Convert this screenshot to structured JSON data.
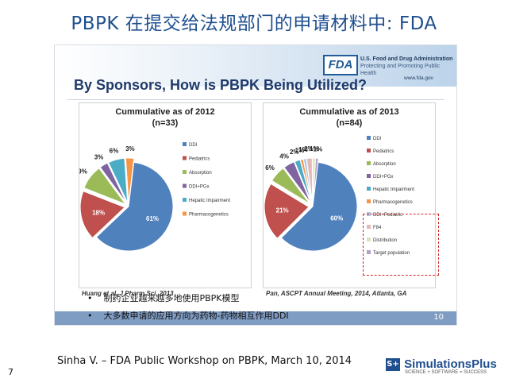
{
  "slide": {
    "title": "PBPK 在提交给法规部门的申请材料中: FDA",
    "page_number": "7",
    "footer": "Sinha V. – FDA Public Workshop on PBPK, March 10, 2014",
    "bullets": [
      "制药企业越来越多地使用PBPK模型",
      "大多数申请的应用方向为药物-药物相互作用DDI"
    ],
    "bullet_glyph": "•"
  },
  "fda": {
    "logo": "FDA",
    "org_name": "U.S. Food and Drug Administration",
    "org_tagline": "Protecting and Promoting Public Health",
    "url": "www.fda.gov",
    "heading": "By Sponsors, How is PBPK Being Utilized?",
    "slide_number": "10"
  },
  "sponsor": {
    "name": "SimulationsPlus",
    "mark": "S+",
    "tagline": "SCIENCE + SOFTWARE = SUCCESS"
  },
  "colors": {
    "title": "#1f4f8f",
    "DDI": "#4f81bd",
    "Pediatrics": "#c0504d",
    "Absorption": "#9bbb59",
    "DDI+PGx": "#8064a2",
    "Hepatic Impairment": "#4bacc6",
    "Pharmacogenetics": "#f79646",
    "DDI+Pediatric": "#a9c4e6",
    "F84": "#e6b9b8",
    "Distribution": "#d7e4bd",
    "Target population": "#b3a2c7",
    "highlight": "#d62728"
  },
  "chart_data": [
    {
      "type": "pie",
      "title": "Cummulative as of 2012",
      "subtitle": "(n=33)",
      "citation": "Huang et al, J Pharm Sci, 2013",
      "legend": [
        "DDI",
        "Pediatrics",
        "Absorption",
        "DDI+PGx",
        "Hepatic Impairment",
        "Pharmacogenetics"
      ],
      "slices": [
        {
          "label": "DDI",
          "value": 61,
          "text": "61%"
        },
        {
          "label": "Pediatrics",
          "value": 18,
          "text": "18%"
        },
        {
          "label": "Absorption",
          "value": 9,
          "text": "9%"
        },
        {
          "label": "DDI+PGx",
          "value": 3,
          "text": "3%"
        },
        {
          "label": "Hepatic Impairment",
          "value": 6,
          "text": "6%"
        },
        {
          "label": "Pharmacogenetics",
          "value": 3,
          "text": "3%"
        }
      ]
    },
    {
      "type": "pie",
      "title": "Cummulative as of 2013",
      "subtitle": "(n=84)",
      "citation": "Pan, ASCPT Annual Meeting, 2014, Atlanta, GA",
      "legend": [
        "DDI",
        "Pediatrics",
        "Absorption",
        "DDI+PGx",
        "Hepatic Impairment",
        "Pharmacogenetics",
        "DDI+Pediatric",
        "F84",
        "Distribution",
        "Target population"
      ],
      "highlighted_legend": [
        "DDI+Pediatric",
        "F84",
        "Distribution",
        "Target population"
      ],
      "slices": [
        {
          "label": "DDI",
          "value": 60,
          "text": "60%"
        },
        {
          "label": "Pediatrics",
          "value": 21,
          "text": "21%"
        },
        {
          "label": "Absorption",
          "value": 6,
          "text": "6%"
        },
        {
          "label": "DDI+PGx",
          "value": 4,
          "text": "4%"
        },
        {
          "label": "Hepatic Impairment",
          "value": 2,
          "text": "2%"
        },
        {
          "label": "Pharmacogenetics",
          "value": 1,
          "text": "1%"
        },
        {
          "label": "DDI+Pediatric",
          "value": 1,
          "text": "1%"
        },
        {
          "label": "F84",
          "value": 2,
          "text": "2%"
        },
        {
          "label": "Distribution",
          "value": 1,
          "text": "1%"
        },
        {
          "label": "Target population",
          "value": 1,
          "text": "1%"
        }
      ]
    }
  ]
}
